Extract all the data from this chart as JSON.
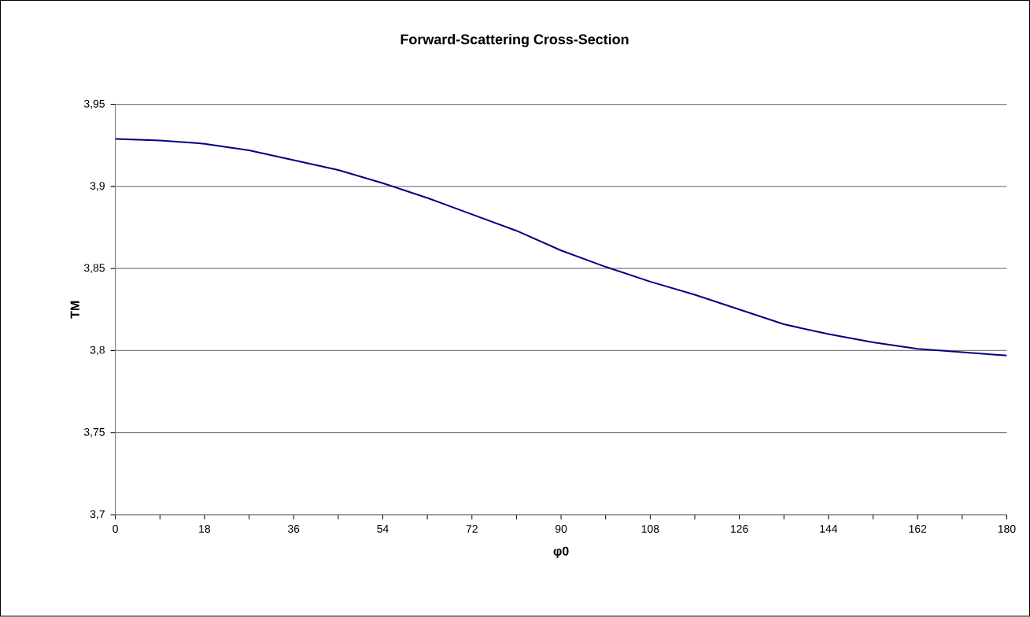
{
  "chart_data": {
    "type": "line",
    "title": "Forward-Scattering Cross-Section",
    "xlabel": "φ0",
    "ylabel": "TM",
    "x": [
      0,
      9,
      18,
      27,
      36,
      45,
      54,
      63,
      72,
      81,
      90,
      99,
      108,
      117,
      126,
      135,
      144,
      153,
      162,
      171,
      180
    ],
    "series": [
      {
        "color": "#000080",
        "values": [
          3.929,
          3.928,
          3.926,
          3.922,
          3.916,
          3.91,
          3.902,
          3.893,
          3.883,
          3.873,
          3.861,
          3.851,
          3.842,
          3.834,
          3.825,
          3.816,
          3.81,
          3.805,
          3.801,
          3.799,
          3.797
        ]
      }
    ],
    "xlim": [
      0,
      180
    ],
    "xticks": [
      0,
      {
        "value": 9,
        "label": null
      },
      18,
      {
        "value": 27,
        "label": null
      },
      36,
      {
        "value": 45,
        "label": null
      },
      54,
      {
        "value": 63,
        "label": null
      },
      72,
      {
        "value": 81,
        "label": null
      },
      90,
      {
        "value": 99,
        "label": null
      },
      108,
      {
        "value": 117,
        "label": null
      },
      126,
      {
        "value": 135,
        "label": null
      },
      144,
      {
        "value": 153,
        "label": null
      },
      162,
      {
        "value": 171,
        "label": null
      },
      180
    ],
    "ylim": [
      3.7,
      3.95
    ],
    "yticks": [
      {
        "value": 3.7,
        "label": "3,7"
      },
      {
        "value": 3.75,
        "label": "3,75"
      },
      {
        "value": 3.8,
        "label": "3,8"
      },
      {
        "value": 3.85,
        "label": "3,85"
      },
      {
        "value": 3.9,
        "label": "3,9"
      },
      {
        "value": 3.95,
        "label": "3,95"
      }
    ],
    "grid": "y",
    "legend": false,
    "marker": "none",
    "line_style": "solid"
  }
}
